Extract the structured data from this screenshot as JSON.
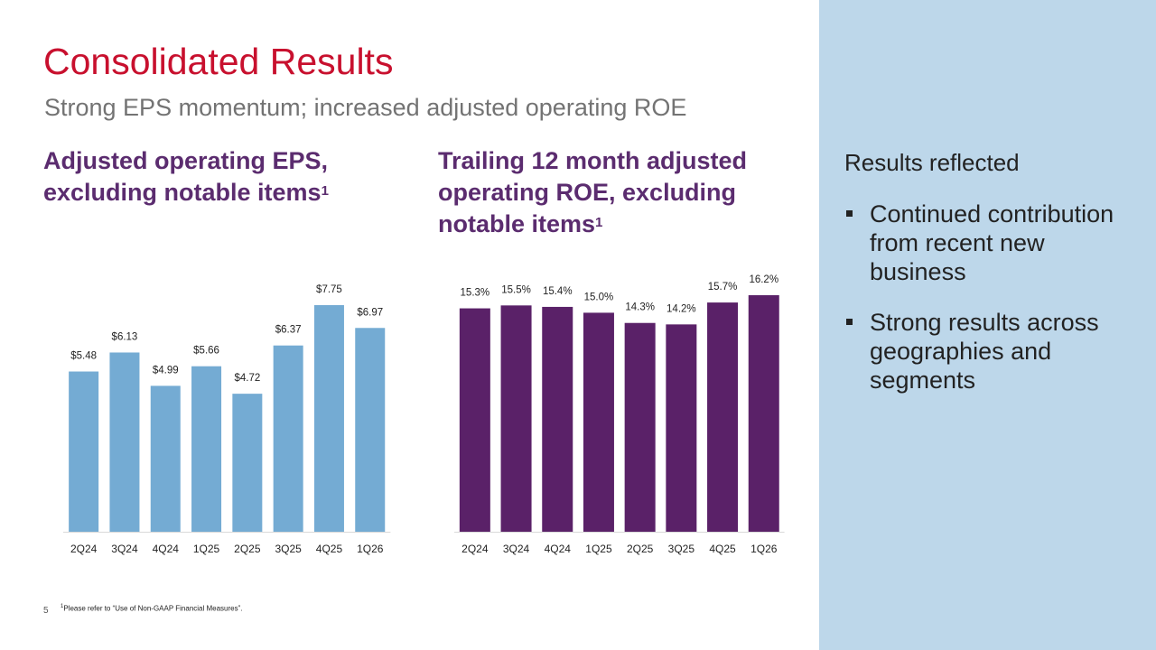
{
  "title": "Consolidated Results",
  "subtitle": "Strong EPS momentum; increased adjusted operating ROE",
  "colors": {
    "title": "#c8102e",
    "heading": "#5b2c6f",
    "eps_bar": "#74abd3",
    "roe_bar": "#5a2168",
    "side_panel": "#bdd7ea"
  },
  "eps_chart": {
    "heading": "Adjusted operating EPS, excluding notable items",
    "heading_sup": "1"
  },
  "roe_chart": {
    "heading": "Trailing 12 month adjusted operating ROE, excluding notable items",
    "heading_sup": "1"
  },
  "side": {
    "heading": "Results reflected",
    "bullets": [
      "Continued contribution from recent new business",
      "Strong results across geographies and segments"
    ]
  },
  "page_number": "5",
  "footnote": {
    "sup": "1",
    "text": "Please refer to “Use of Non-GAAP Financial Measures”."
  },
  "chart_data": [
    {
      "type": "bar",
      "categories": [
        "2Q24",
        "3Q24",
        "4Q24",
        "1Q25",
        "2Q25",
        "3Q25",
        "4Q25",
        "1Q26"
      ],
      "values": [
        5.48,
        6.13,
        4.99,
        5.66,
        4.72,
        6.37,
        7.75,
        6.97
      ],
      "data_labels": [
        "$5.48",
        "$6.13",
        "$4.99",
        "$5.66",
        "$4.72",
        "$6.37",
        "$7.75",
        "$6.97"
      ],
      "title": "Adjusted operating EPS, excluding notable items",
      "ylim": [
        0,
        7.75
      ],
      "grid": false,
      "color": "#74abd3"
    },
    {
      "type": "bar",
      "categories": [
        "2Q24",
        "3Q24",
        "4Q24",
        "1Q25",
        "2Q25",
        "3Q25",
        "4Q25",
        "1Q26"
      ],
      "values": [
        15.3,
        15.5,
        15.4,
        15.0,
        14.3,
        14.2,
        15.7,
        16.2
      ],
      "data_labels": [
        "15.3%",
        "15.5%",
        "15.4%",
        "15.0%",
        "14.3%",
        "14.2%",
        "15.7%",
        "16.2%"
      ],
      "title": "Trailing 12 month adjusted operating ROE, excluding notable items",
      "ylim": [
        0,
        16.2
      ],
      "grid": false,
      "color": "#5a2168"
    }
  ]
}
